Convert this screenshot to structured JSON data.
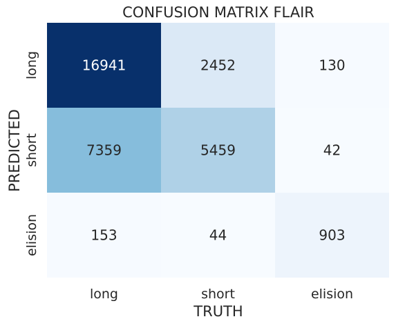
{
  "chart_data": {
    "type": "heatmap",
    "title": "CONFUSION MATRIX FLAIR",
    "xlabel": "TRUTH",
    "ylabel": "PREDICTED",
    "x_categories": [
      "long",
      "short",
      "elision"
    ],
    "y_categories": [
      "long",
      "short",
      "elision"
    ],
    "values": [
      [
        16941,
        2452,
        130
      ],
      [
        7359,
        5459,
        42
      ],
      [
        153,
        44,
        903
      ]
    ],
    "colormap": "Blues",
    "colorbar": false,
    "grid": false,
    "value_labels": true
  }
}
